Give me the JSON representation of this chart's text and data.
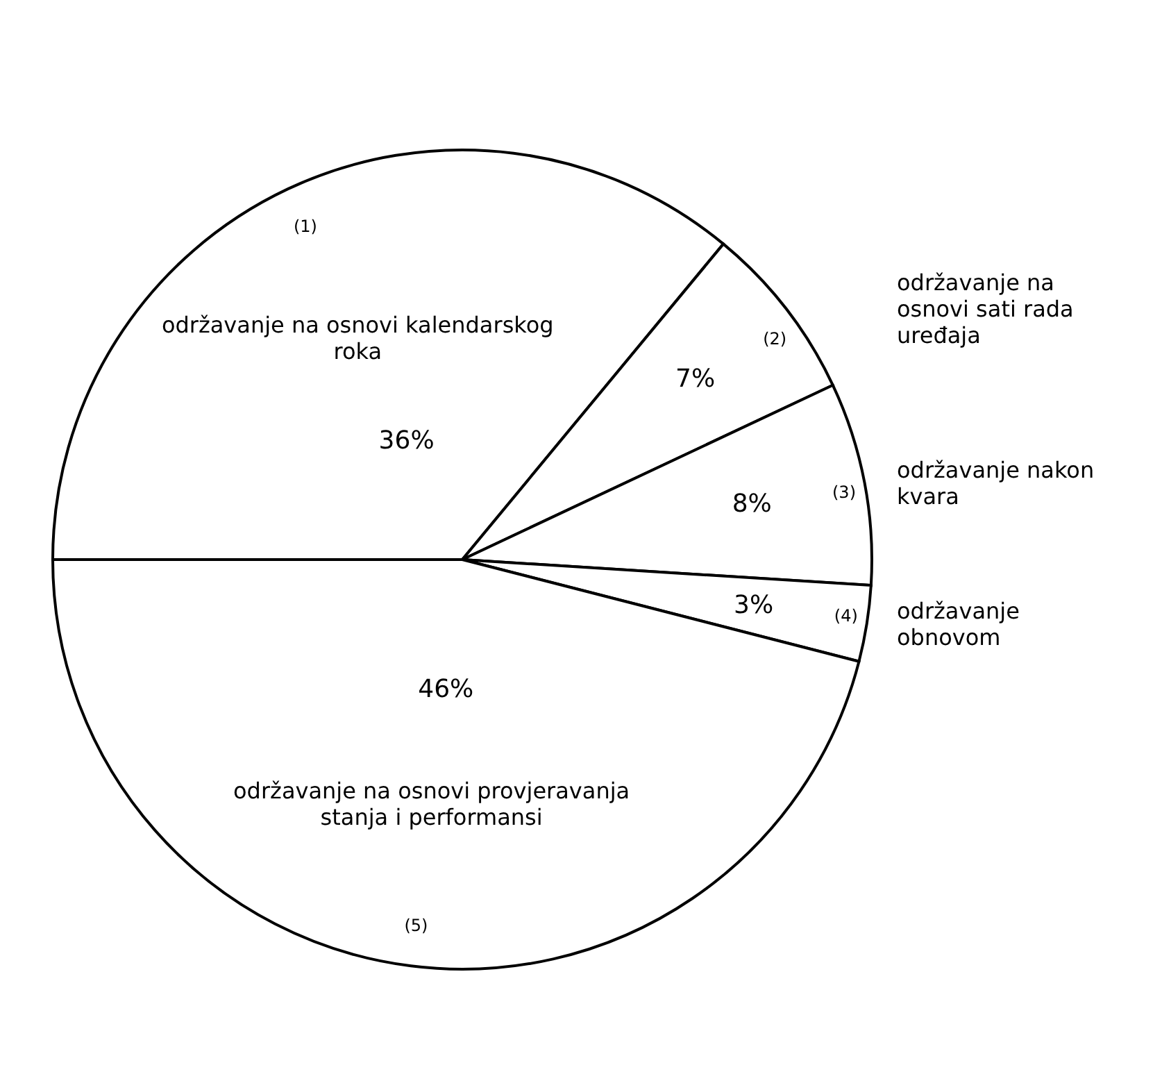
{
  "chart_data": {
    "type": "pie",
    "categories": [
      "održavanje na osnovi kalendarskog roka",
      "održavanje na osnovi sati rada uređaja",
      "održavanje nakon kvara",
      "održavanje obnovom",
      "održavanje na osnovi provjeravanja stanja i performansi"
    ],
    "values": [
      36,
      7,
      8,
      3,
      46
    ],
    "colors": [
      "#ffffff",
      "#ffffff",
      "#ffffff",
      "#ffffff",
      "#ffffff"
    ],
    "value_labels": [
      "36%",
      "7%",
      "8%",
      "3%",
      "46%"
    ],
    "annotations": [
      "(1)",
      "(2)",
      "(3)",
      "(4)",
      "(5)"
    ]
  }
}
